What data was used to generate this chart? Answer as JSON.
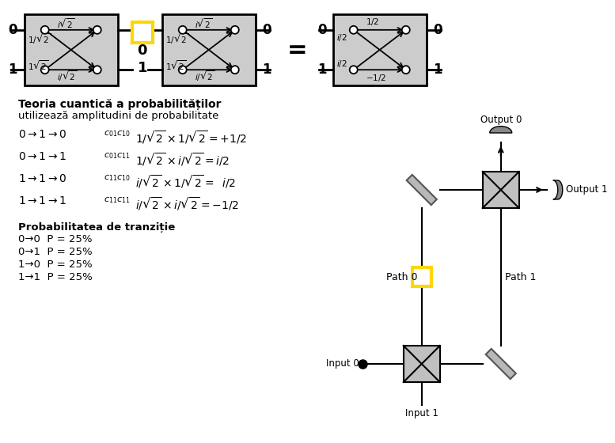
{
  "title_bold": "Teoria cuantică a probabilităților",
  "title_normal": "utilizează amplitudini de probabilitate",
  "bg_color": "#cccccc",
  "yellow_color": "#FFD700",
  "prob_title": "Probabilitatea de tranziție",
  "prob_lines": [
    "0→0  P = 25%",
    "0→1  P = 25%",
    "1→0  P = 25%",
    "1→1  P = 25%"
  ],
  "output0_label": "Output 0",
  "output1_label": "Output 1",
  "input0_label": "Input 0",
  "input1_label": "Input 1",
  "path0_label": "Path 0",
  "path1_label": "Path 1"
}
